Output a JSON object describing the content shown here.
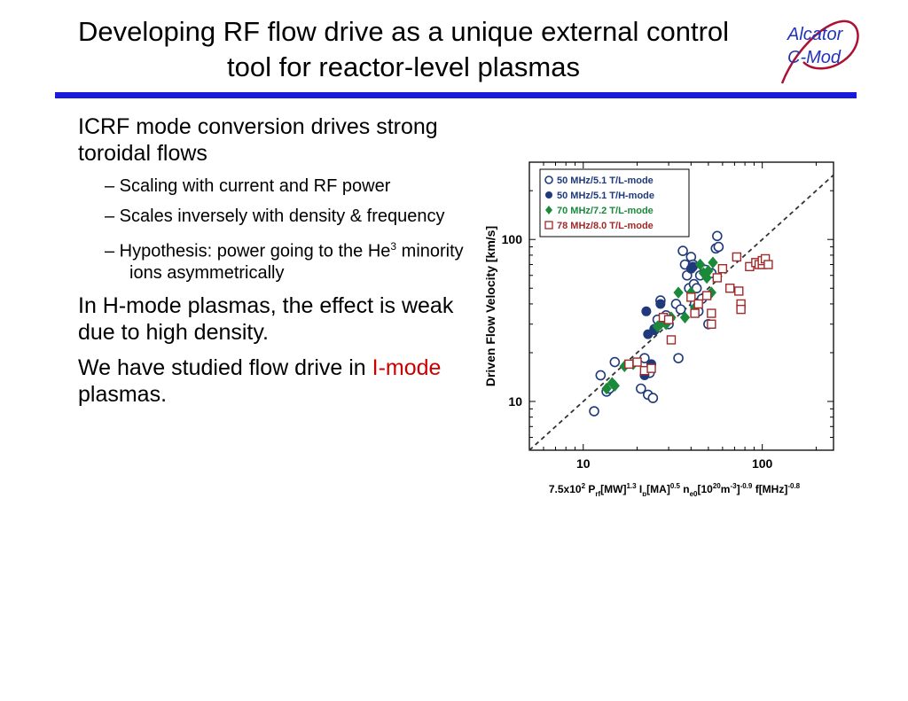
{
  "slide": {
    "title_line1": "Developing RF flow drive as a unique external control",
    "title_line2": "tool for reactor-level plasmas",
    "logo_line1": "Alcator",
    "logo_line2": "C-Mod",
    "bullet1": "ICRF mode conversion drives strong toroidal flows",
    "sub1": "– Scaling with current and RF power",
    "sub2": "– Scales inversely with density & frequency",
    "sub3_pre": "– Hypothesis: power going to the He",
    "sub3_sup": "3",
    "sub3_post": " minority ions asymmetrically",
    "bullet2": "In H-mode plasmas, the effect is weak due to high density.",
    "bullet3_pre": "We have studied flow drive in ",
    "bullet3_red": "I-mode",
    "bullet3_post": " plasmas."
  },
  "colors": {
    "title_rule": "#1a1adf",
    "logo": "#2233bb",
    "logo_arc": "#aa1133",
    "highlight": "#cc0000"
  },
  "chart_data": {
    "type": "scatter",
    "xlabel_parts": [
      "7.5x10",
      "2",
      " P",
      "rf",
      "[MW]",
      "1.3",
      " I",
      "p",
      "[MA]",
      "0.5",
      " n",
      "e0",
      "[10",
      "20",
      "m",
      "-3",
      "]",
      "-0.9",
      " f[MHz]",
      "-0.8"
    ],
    "ylabel": "Driven Flow Velocity [km/s]",
    "x_scale": "log",
    "y_scale": "log",
    "xlim": [
      5,
      250
    ],
    "ylim": [
      5,
      300
    ],
    "x_ticks": [
      10,
      100
    ],
    "y_ticks": [
      10,
      100
    ],
    "x_tick_labels": [
      "10",
      "100"
    ],
    "y_tick_labels": [
      "10",
      "100"
    ],
    "reference_line": "y = x",
    "legend_position": "top-left",
    "series": [
      {
        "name": "50 MHz/5.1 T/L-mode",
        "marker": "open-circle",
        "color": "#1f3a7a",
        "points": [
          [
            11.5,
            8.7
          ],
          [
            12.5,
            14.5
          ],
          [
            13.5,
            11.5
          ],
          [
            14,
            12
          ],
          [
            15,
            17.5
          ],
          [
            21,
            12
          ],
          [
            22,
            18.5
          ],
          [
            23,
            11
          ],
          [
            23.5,
            15
          ],
          [
            24.5,
            10.5
          ],
          [
            25,
            28
          ],
          [
            26,
            32
          ],
          [
            27,
            42
          ],
          [
            29,
            34
          ],
          [
            30,
            30
          ],
          [
            33,
            40
          ],
          [
            34,
            18.5
          ],
          [
            35,
            37
          ],
          [
            36,
            85
          ],
          [
            37,
            70
          ],
          [
            38,
            60
          ],
          [
            39,
            50
          ],
          [
            40,
            78
          ],
          [
            41,
            70
          ],
          [
            41.5,
            53
          ],
          [
            42,
            40
          ],
          [
            43,
            50
          ],
          [
            44,
            36
          ],
          [
            45,
            60
          ],
          [
            46,
            43
          ],
          [
            48,
            65
          ],
          [
            50,
            30
          ],
          [
            52,
            62
          ],
          [
            55,
            88
          ],
          [
            56,
            105
          ],
          [
            57,
            90
          ]
        ]
      },
      {
        "name": "50 MHz/5.1 T/H-mode",
        "marker": "filled-circle",
        "color": "#1f3a7a",
        "points": [
          [
            22,
            14.5
          ],
          [
            22.5,
            36
          ],
          [
            23,
            26
          ],
          [
            24,
            17
          ],
          [
            25,
            27.5
          ],
          [
            27,
            40
          ],
          [
            40,
            66
          ],
          [
            41,
            68
          ]
        ]
      },
      {
        "name": "70 MHz/7.2 T/L-mode",
        "marker": "filled-diamond",
        "color": "#1a8a3a",
        "points": [
          [
            13.5,
            12
          ],
          [
            14.5,
            13
          ],
          [
            15,
            12.5
          ],
          [
            17,
            16.5
          ],
          [
            19,
            17
          ],
          [
            26,
            29
          ],
          [
            27,
            30
          ],
          [
            29,
            30
          ],
          [
            31,
            33
          ],
          [
            34,
            47
          ],
          [
            37,
            33
          ],
          [
            40,
            47
          ],
          [
            42,
            38
          ],
          [
            45,
            70
          ],
          [
            47,
            62
          ],
          [
            49,
            58
          ],
          [
            50,
            64
          ],
          [
            52,
            47
          ],
          [
            53,
            72
          ]
        ]
      },
      {
        "name": "78 MHz/8.0 T/L-mode",
        "marker": "open-square",
        "color": "#a02a2a",
        "points": [
          [
            18,
            17
          ],
          [
            20,
            17.5
          ],
          [
            22,
            15.5
          ],
          [
            24,
            16
          ],
          [
            28,
            33
          ],
          [
            30,
            32
          ],
          [
            31,
            24
          ],
          [
            40,
            44
          ],
          [
            42,
            35
          ],
          [
            44,
            40
          ],
          [
            49,
            45
          ],
          [
            52,
            35
          ],
          [
            52,
            30
          ],
          [
            56,
            58
          ],
          [
            60,
            66
          ],
          [
            66,
            50
          ],
          [
            72,
            78
          ],
          [
            74,
            48
          ],
          [
            76,
            40
          ],
          [
            76,
            37
          ],
          [
            85,
            68
          ],
          [
            92,
            72
          ],
          [
            96,
            70
          ],
          [
            100,
            70
          ],
          [
            100,
            74
          ],
          [
            104,
            76
          ],
          [
            108,
            70
          ]
        ]
      }
    ]
  }
}
